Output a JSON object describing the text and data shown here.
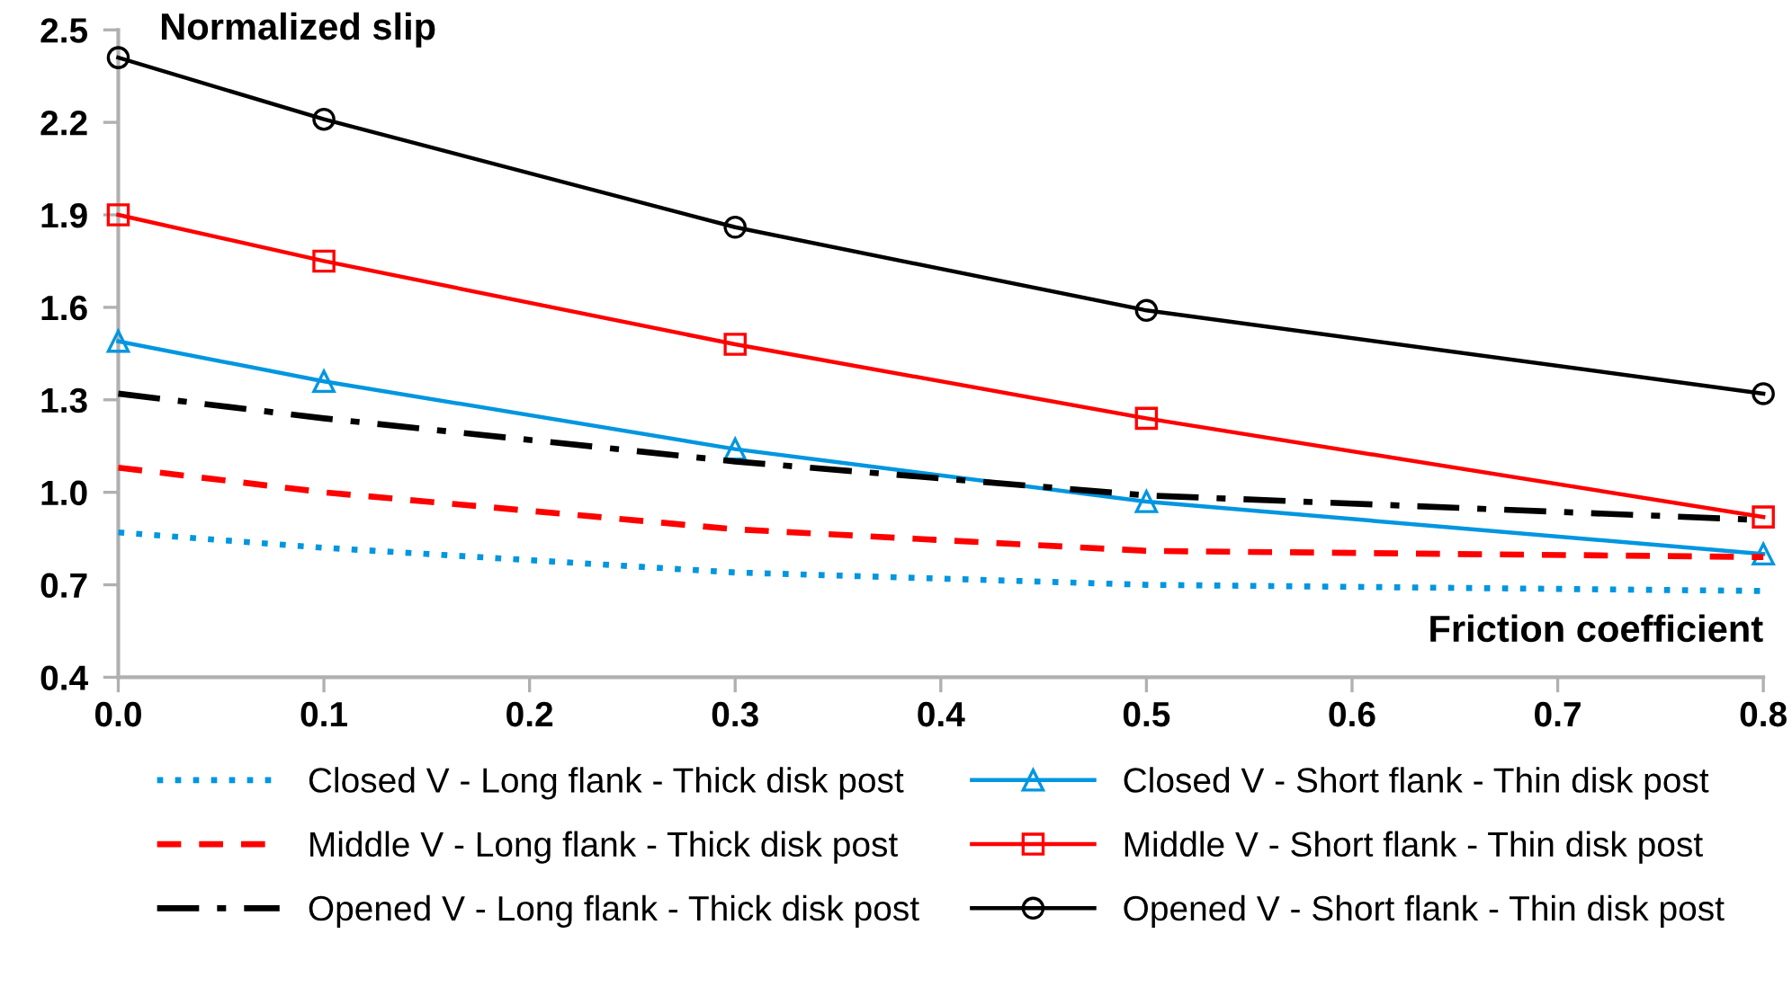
{
  "chart_data": {
    "type": "line",
    "xlabel": "Friction coefficient",
    "ylabel": "Normalized slip",
    "x": [
      0,
      0.1,
      0.3,
      0.5,
      0.8
    ],
    "xlim": [
      0,
      0.8
    ],
    "xticks": [
      {
        "value": 0,
        "label": "0.0"
      },
      0.1,
      0.2,
      0.3,
      0.4,
      0.5,
      0.6,
      0.7,
      0.8
    ],
    "ylim": [
      0.4,
      2.5
    ],
    "yticks": [
      0.4,
      0.7,
      {
        "value": 1.0,
        "label": "1.0"
      },
      1.3,
      1.6,
      1.9,
      2.2,
      2.5
    ],
    "grid": false,
    "legend": "bottom",
    "series": [
      {
        "name": "Closed V - Long flank - Thick disk post",
        "color": "#0096e0",
        "line_style": "dotted",
        "marker": "none",
        "values": [
          0.87,
          0.82,
          0.74,
          0.7,
          0.68
        ]
      },
      {
        "name": "Closed V - Short flank - Thin disk post",
        "color": "#0096e0",
        "line_style": "solid",
        "marker": "triangle",
        "values": [
          1.49,
          1.36,
          1.14,
          0.97,
          0.8
        ]
      },
      {
        "name": "Middle V - Long flank - Thick disk post",
        "color": "#ff0000",
        "line_style": "dashed",
        "marker": "none",
        "values": [
          1.08,
          1.0,
          0.88,
          0.81,
          0.79
        ]
      },
      {
        "name": "Middle V - Short flank - Thin disk post",
        "color": "#ff0000",
        "line_style": "solid",
        "marker": "square",
        "values": [
          1.9,
          1.75,
          1.48,
          1.24,
          0.92
        ]
      },
      {
        "name": "Opened V - Long flank - Thick disk post",
        "color": "#000000",
        "line_style": "dashdot",
        "marker": "none",
        "values": [
          1.32,
          1.24,
          1.1,
          0.99,
          0.91
        ]
      },
      {
        "name": "Opened V - Short flank - Thin disk post",
        "color": "#000000",
        "line_style": "solid",
        "marker": "circle",
        "values": [
          2.41,
          2.21,
          1.86,
          1.59,
          1.32
        ]
      }
    ]
  }
}
